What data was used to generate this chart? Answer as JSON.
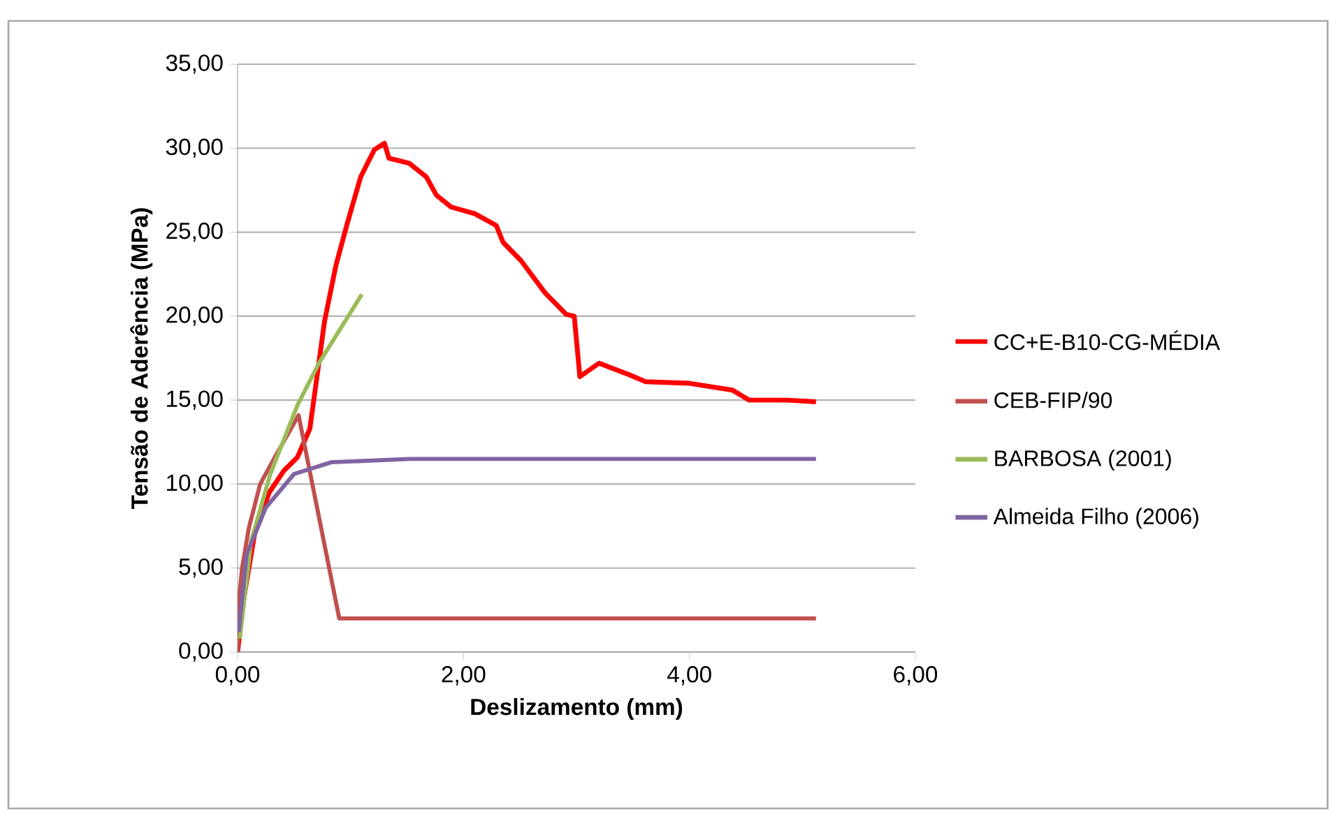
{
  "chart_data": {
    "type": "line",
    "xlabel": "Deslizamento (mm)",
    "ylabel": "Tensão de Aderência (MPa)",
    "xlim": [
      0,
      6
    ],
    "ylim": [
      0,
      35
    ],
    "xticks": [
      {
        "value": 0,
        "label": "0,00"
      },
      {
        "value": 2,
        "label": "2,00"
      },
      {
        "value": 4,
        "label": "4,00"
      },
      {
        "value": 6,
        "label": "6,00"
      }
    ],
    "yticks": [
      {
        "value": 0,
        "label": "0,00"
      },
      {
        "value": 5,
        "label": "5,00"
      },
      {
        "value": 10,
        "label": "10,00"
      },
      {
        "value": 15,
        "label": "15,00"
      },
      {
        "value": 20,
        "label": "20,00"
      },
      {
        "value": 25,
        "label": "25,00"
      },
      {
        "value": 30,
        "label": "30,00"
      },
      {
        "value": 35,
        "label": "35,00"
      }
    ],
    "grid": "y",
    "legend": "right",
    "marker": "none",
    "line_style": "solid",
    "series": [
      {
        "name": "CC+E-B10-CG-MÉDIA",
        "color": "#ff0000",
        "x": [
          0,
          0.05,
          0.15,
          0.28,
          0.41,
          0.53,
          0.64,
          0.77,
          0.87,
          0.97,
          1.09,
          1.21,
          1.3,
          1.34,
          1.52,
          1.67,
          1.76,
          1.89,
          2.1,
          2.29,
          2.35,
          2.51,
          2.72,
          2.91,
          2.98,
          3.03,
          3.2,
          3.47,
          3.61,
          4.0,
          4.38,
          4.53,
          4.86,
          5.12
        ],
        "values": [
          0,
          3,
          7,
          9.5,
          10.8,
          11.6,
          13.3,
          19.7,
          23,
          25.5,
          28.3,
          29.9,
          30.3,
          29.4,
          29.1,
          28.3,
          27.2,
          26.5,
          26.1,
          25.4,
          24.4,
          23.3,
          21.4,
          20.1,
          20,
          16.4,
          17.2,
          16.5,
          16.1,
          16.0,
          15.6,
          15.0,
          15.0,
          14.9
        ]
      },
      {
        "name": "CEB-FIP/90",
        "color": "#c0504d",
        "x": [
          0,
          0.01,
          0.04,
          0.1,
          0.2,
          0.33,
          0.54,
          0.9,
          5.12
        ],
        "values": [
          0,
          2.9,
          5,
          7.4,
          10,
          11.6,
          14.1,
          2.0,
          2.0
        ]
      },
      {
        "name": "BARBOSA (2001)",
        "color": "#9bbb59",
        "x": [
          0.02,
          0.12,
          0.29,
          0.53,
          0.72,
          1.1
        ],
        "values": [
          0.8,
          6.6,
          10.6,
          14.7,
          17.2,
          21.3
        ]
      },
      {
        "name": "Almeida Filho (2006)",
        "color": "#8064a2",
        "x": [
          0.01,
          0.08,
          0.25,
          0.5,
          0.83,
          1.52,
          5.12
        ],
        "values": [
          1.2,
          5.8,
          8.6,
          10.6,
          11.3,
          11.5,
          11.5
        ]
      }
    ]
  }
}
